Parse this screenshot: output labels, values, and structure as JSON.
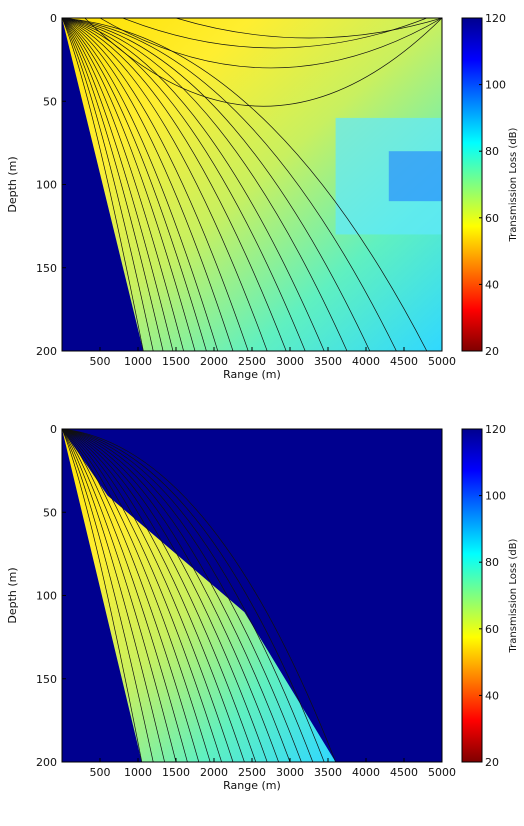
{
  "chart_data": [
    {
      "type": "heatmap",
      "title": "",
      "xlabel": "Range (m)",
      "ylabel": "Depth (m)",
      "colorbar_label": "Transmission Loss (dB)",
      "xlim": [
        0,
        5000
      ],
      "ylim": [
        0,
        200
      ],
      "y_reversed": true,
      "xticks": [
        500,
        1000,
        1500,
        2000,
        2500,
        3000,
        3500,
        4000,
        4500,
        5000
      ],
      "yticks": [
        0,
        50,
        100,
        150,
        200
      ],
      "clim": [
        20,
        120
      ],
      "cticks": [
        20,
        40,
        60,
        80,
        100,
        120
      ],
      "colormap": "jet",
      "shadow_boundary": [
        [
          0,
          0
        ],
        [
          1070,
          200
        ]
      ],
      "rays_down_end_x": [
        1070,
        1200,
        1330,
        1460,
        1600,
        1750,
        1900,
        2050,
        2250,
        2450,
        2700,
        2950,
        3200,
        3450,
        3750,
        4050,
        4400,
        4800
      ],
      "rays_surface_arcs": [
        {
          "x_start": 300,
          "x_end": 5000,
          "max_depth": 53
        },
        {
          "x_start": 500,
          "x_end": 5000,
          "max_depth": 30
        },
        {
          "x_start": 800,
          "x_end": 4800,
          "max_depth": 18
        },
        {
          "x_start": 1500,
          "x_end": 5000,
          "max_depth": 12
        }
      ]
    },
    {
      "type": "heatmap",
      "title": "",
      "xlabel": "Range (m)",
      "ylabel": "Depth (m)",
      "colorbar_label": "Transmission Loss (dB)",
      "xlim": [
        0,
        5000
      ],
      "ylim": [
        0,
        200
      ],
      "y_reversed": true,
      "xticks": [
        500,
        1000,
        1500,
        2000,
        2500,
        3000,
        3500,
        4000,
        4500,
        5000
      ],
      "yticks": [
        0,
        50,
        100,
        150,
        200
      ],
      "clim": [
        20,
        120
      ],
      "cticks": [
        20,
        40,
        60,
        80,
        100,
        120
      ],
      "colormap": "jet",
      "shadow_boundary": [
        [
          0,
          0
        ],
        [
          600,
          40
        ],
        [
          1500,
          75
        ],
        [
          2400,
          110
        ],
        [
          3600,
          200
        ]
      ],
      "ray_fan_end_x": [
        1050,
        1200,
        1350,
        1500,
        1650,
        1800,
        1950,
        2100,
        2250,
        2400,
        2550,
        2700,
        2850,
        3000,
        3150,
        3300,
        3450,
        3600
      ]
    }
  ],
  "colors": {
    "deep_blue": "#00008f",
    "ray_line": "#111111",
    "colormap_stops": [
      "#7f0000",
      "#ff0000",
      "#ff8000",
      "#ffff00",
      "#80ff80",
      "#00ffff",
      "#0080ff",
      "#0000ff",
      "#00008f"
    ]
  }
}
